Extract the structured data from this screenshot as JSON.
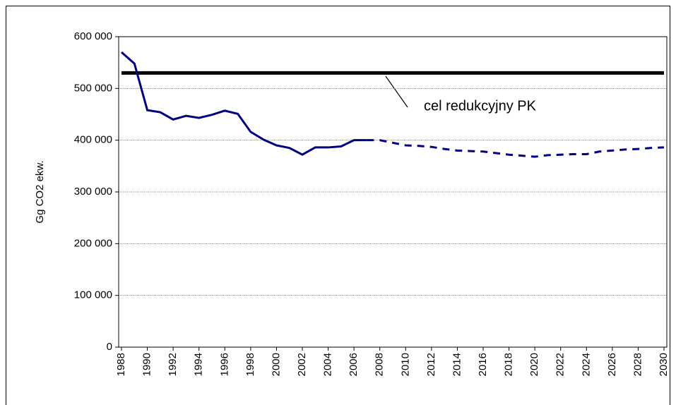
{
  "chart_data": {
    "type": "line",
    "ylabel": "Gg CO2 ekw.",
    "x": [
      1988,
      1989,
      1990,
      1991,
      1992,
      1993,
      1994,
      1995,
      1996,
      1997,
      1998,
      1999,
      2000,
      2001,
      2002,
      2003,
      2004,
      2005,
      2006,
      2007,
      2008,
      2009,
      2010,
      2011,
      2012,
      2013,
      2014,
      2015,
      2016,
      2017,
      2018,
      2019,
      2020,
      2021,
      2022,
      2023,
      2024,
      2025,
      2026,
      2027,
      2028,
      2029,
      2030
    ],
    "xlim": [
      1988,
      2030
    ],
    "xticks": [
      1988,
      1990,
      1992,
      1994,
      1996,
      1998,
      2000,
      2002,
      2004,
      2006,
      2008,
      2010,
      2012,
      2014,
      2016,
      2018,
      2020,
      2022,
      2024,
      2026,
      2028,
      2030
    ],
    "ylim": [
      0,
      600000
    ],
    "yticks": [
      {
        "value": 0,
        "label": "0"
      },
      {
        "value": 100000,
        "label": "100 000"
      },
      {
        "value": 200000,
        "label": "200 000"
      },
      {
        "value": 300000,
        "label": "300 000"
      },
      {
        "value": 400000,
        "label": "400 000"
      },
      {
        "value": 500000,
        "label": "500 000"
      },
      {
        "value": 600000,
        "label": "600 000"
      }
    ],
    "grid": true,
    "series": [
      {
        "color": "#000080",
        "dash": false,
        "values": [
          570000,
          548000,
          458000,
          454000,
          440000,
          447000,
          443000,
          449000,
          457000,
          451000,
          416000,
          401000,
          390000,
          385000,
          372000,
          386000,
          386000,
          388000,
          400000,
          400000,
          null,
          null,
          null,
          null,
          null,
          null,
          null,
          null,
          null,
          null,
          null,
          null,
          null,
          null,
          null,
          null,
          null,
          null,
          null,
          null,
          null,
          null,
          null
        ]
      },
      {
        "color": "#000080",
        "dash": true,
        "values": [
          null,
          null,
          null,
          null,
          null,
          null,
          null,
          null,
          null,
          null,
          null,
          null,
          null,
          null,
          null,
          null,
          null,
          null,
          null,
          400000,
          400000,
          395000,
          390000,
          389000,
          387000,
          383000,
          380000,
          379000,
          378000,
          375000,
          372000,
          370000,
          368000,
          371000,
          372000,
          373000,
          373000,
          378000,
          380000,
          382000,
          383000,
          385000,
          386000
        ]
      }
    ],
    "hline": {
      "value": 530000,
      "color": "#000000"
    },
    "annotation": "cel redukcyjny PK"
  }
}
